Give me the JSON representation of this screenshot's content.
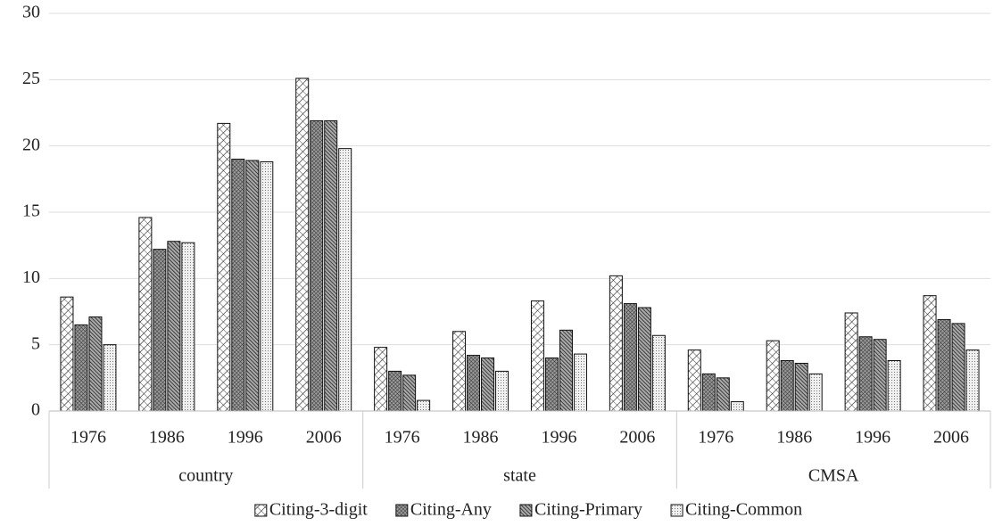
{
  "chart_data": {
    "type": "grouped-bar",
    "groups": [
      {
        "name": "country",
        "categories": [
          "1976",
          "1986",
          "1996",
          "2006"
        ]
      },
      {
        "name": "state",
        "categories": [
          "1976",
          "1986",
          "1996",
          "2006"
        ]
      },
      {
        "name": "CMSA",
        "categories": [
          "1976",
          "1986",
          "1996",
          "2006"
        ]
      }
    ],
    "series": [
      {
        "name": "Citing-3-digit",
        "color": "#ffffff",
        "values": [
          8.6,
          14.6,
          21.7,
          25.1,
          4.8,
          6.0,
          8.3,
          10.2,
          4.6,
          5.3,
          7.4,
          8.7
        ]
      },
      {
        "name": "Citing-Any",
        "color": "#7a7a7a",
        "values": [
          6.5,
          12.2,
          19.0,
          21.9,
          3.0,
          4.2,
          4.0,
          8.1,
          2.8,
          3.8,
          5.6,
          6.9
        ]
      },
      {
        "name": "Citing-Primary",
        "color": "#5a5a5a",
        "values": [
          7.1,
          12.8,
          18.9,
          21.9,
          2.7,
          4.0,
          6.1,
          7.8,
          2.5,
          3.6,
          5.4,
          6.6
        ]
      },
      {
        "name": "Citing-Common",
        "color": "#e6e6e6",
        "values": [
          5.0,
          12.7,
          18.8,
          19.8,
          0.8,
          3.0,
          4.3,
          5.7,
          0.7,
          2.8,
          3.8,
          4.6
        ]
      }
    ],
    "ylim": [
      0,
      30
    ],
    "yticks": [
      0,
      5,
      10,
      15,
      20,
      25,
      30
    ],
    "grid": true,
    "legend": "bottom"
  }
}
